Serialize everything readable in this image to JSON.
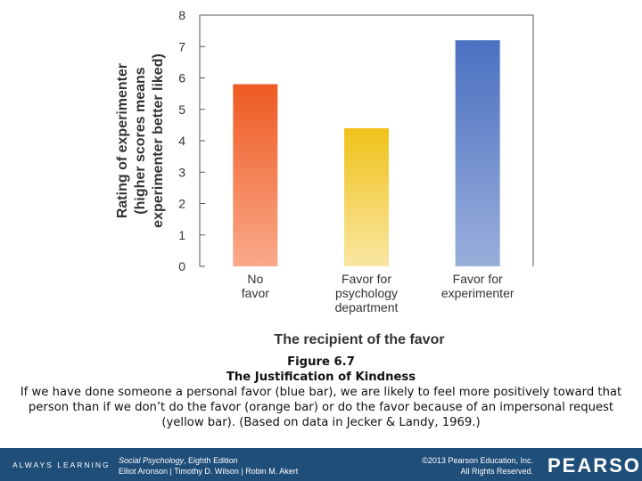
{
  "chart_data": {
    "type": "bar",
    "ylabel_lines": [
      "Rating of experimenter",
      "(higher scores means",
      "experimenter better liked)"
    ],
    "xlabel": "The recipient of the favor",
    "ylim": [
      0,
      8
    ],
    "yticks": [
      0,
      1,
      2,
      3,
      4,
      5,
      6,
      7,
      8
    ],
    "categories": [
      {
        "lines": [
          "No",
          "favor"
        ]
      },
      {
        "lines": [
          "Favor for",
          "psychology",
          "department"
        ]
      },
      {
        "lines": [
          "Favor for",
          "experimenter"
        ]
      }
    ],
    "values": [
      5.8,
      4.4,
      7.2
    ],
    "colors": [
      {
        "top": "#ef5a22",
        "bottom": "#f9a98a"
      },
      {
        "top": "#f0c21a",
        "bottom": "#f9e6a2"
      },
      {
        "top": "#4a70c0",
        "bottom": "#9aaedb"
      }
    ]
  },
  "caption": {
    "number": "Figure 6.7",
    "title": "The Justification of Kindness",
    "text": "If we have done someone a personal favor (blue bar), we are likely to feel more positively toward that person than if we don’t do the favor (orange bar) or do the favor because of an impersonal request (yellow bar). (Based on data in Jecker & Landy, 1969.)"
  },
  "footer": {
    "tagline": "ALWAYS LEARNING",
    "book_title": "Social Psychology",
    "book_edition": ", Eighth Edition",
    "authors": "Elliot Aronson | Timothy D. Wilson | Robin M. Akert",
    "copyright": "©2013 Pearson Education, Inc.",
    "rights": "All Rights Reserved.",
    "brand": "PEARSON",
    "bar_color": "#1f4e79"
  }
}
